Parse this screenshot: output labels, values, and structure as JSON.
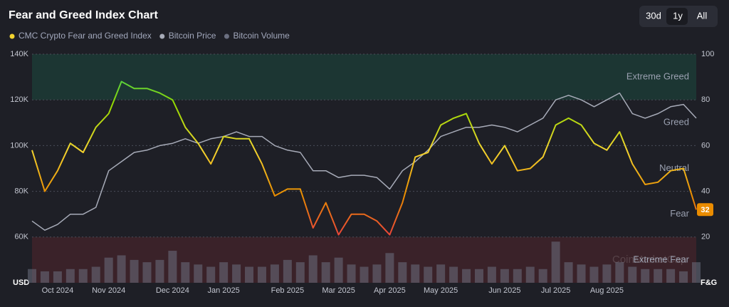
{
  "chart_data": {
    "type": "line",
    "title": "Fear and Greed Index Chart",
    "range_buttons": [
      "30d",
      "1y",
      "All"
    ],
    "selected_button": 1,
    "watermark": "CoinMarketCap",
    "categories": [
      null,
      null,
      "Oct 2024",
      null,
      null,
      null,
      "Nov 2024",
      null,
      null,
      null,
      null,
      "Dec 2024",
      null,
      null,
      null,
      "Jan 2025",
      null,
      null,
      null,
      null,
      "Feb 2025",
      null,
      null,
      null,
      "Mar 2025",
      null,
      null,
      null,
      "Apr 2025",
      null,
      null,
      null,
      "May 2025",
      null,
      null,
      null,
      null,
      "Jun 2025",
      null,
      null,
      null,
      "Jul 2025",
      null,
      null,
      null,
      "Aug 2025",
      null,
      null,
      null,
      null,
      null,
      null,
      null
    ],
    "series": [
      {
        "name": "CMC Crypto Fear and Greed Index",
        "color": "#f3d42f",
        "axis": "y2",
        "kind": "gradient-line",
        "values": [
          58,
          40,
          49,
          61,
          57,
          68,
          74,
          88,
          85,
          85,
          83,
          80,
          68,
          61,
          52,
          64,
          63,
          63,
          52,
          38,
          41,
          41,
          24,
          35,
          21,
          30,
          30,
          27,
          21,
          35,
          55,
          57,
          69,
          72,
          74,
          61,
          52,
          60,
          49,
          50,
          55,
          69,
          72,
          69,
          61,
          58,
          66,
          52,
          43,
          44,
          49,
          50,
          32
        ]
      },
      {
        "name": "Bitcoin Price",
        "color": "#a7abb8",
        "axis": "y",
        "kind": "line",
        "values": [
          67000,
          63000,
          65500,
          70000,
          70000,
          73000,
          89000,
          93000,
          97000,
          98000,
          100000,
          101000,
          103000,
          101000,
          103000,
          104000,
          106000,
          104000,
          104000,
          100000,
          98000,
          97000,
          89000,
          89000,
          86000,
          87000,
          87000,
          86000,
          81000,
          89000,
          93000,
          98000,
          104000,
          106000,
          108000,
          108000,
          109000,
          108000,
          106000,
          109000,
          112000,
          120000,
          122000,
          120000,
          117000,
          120000,
          123000,
          114000,
          112000,
          114000,
          117000,
          118000,
          112000
        ]
      },
      {
        "name": "Bitcoin Volume",
        "color": "#6b6f80",
        "axis": "y2",
        "kind": "bar",
        "values": [
          6,
          5,
          5,
          6,
          6,
          7,
          11,
          12,
          10,
          9,
          10,
          14,
          9,
          8,
          7,
          9,
          8,
          7,
          7,
          8,
          10,
          9,
          12,
          9,
          11,
          8,
          7,
          8,
          13,
          9,
          8,
          7,
          8,
          7,
          6,
          6,
          7,
          6,
          6,
          7,
          6,
          18,
          9,
          8,
          7,
          8,
          9,
          7,
          6,
          6,
          6,
          5,
          9
        ]
      }
    ],
    "ylim": [
      40000,
      140000
    ],
    "yticks": [
      {
        "value": 60000,
        "label": "60K"
      },
      {
        "value": 80000,
        "label": "80K"
      },
      {
        "value": 100000,
        "label": "100K"
      },
      {
        "value": 120000,
        "label": "120K"
      },
      {
        "value": 140000,
        "label": "140K"
      }
    ],
    "y_unit_label": "USD",
    "y2lim": [
      0,
      100
    ],
    "y2ticks": [
      20,
      40,
      60,
      80,
      100
    ],
    "y2_unit_label": "F&G",
    "grid": true,
    "color_stops": [
      {
        "value": 100,
        "color": "#16c784"
      },
      {
        "value": 78,
        "color": "#93d900"
      },
      {
        "value": 58,
        "color": "#f3d42f"
      },
      {
        "value": 38,
        "color": "#ea8c00"
      },
      {
        "value": 18,
        "color": "#ea3943"
      }
    ],
    "zones": [
      {
        "label": "Extreme Greed",
        "range": [
          80,
          100
        ],
        "shade": "#16c784"
      },
      {
        "label": "Greed",
        "range": [
          60,
          80
        ]
      },
      {
        "label": "Neutral",
        "range": [
          40,
          60
        ]
      },
      {
        "label": "Fear",
        "range": [
          20,
          40
        ]
      },
      {
        "label": "Extreme Fear",
        "range": [
          0,
          20
        ],
        "shade": "#ea3943"
      }
    ]
  }
}
